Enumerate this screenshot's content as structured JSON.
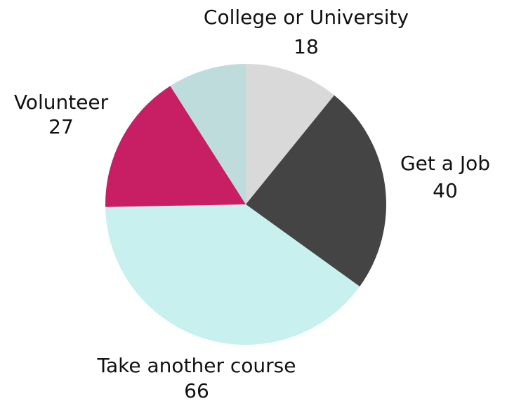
{
  "chart_data": {
    "type": "pie",
    "start_angle_deg": 90,
    "direction": "clockwise",
    "slices": [
      {
        "label": "College or University",
        "value": 18,
        "value_text": "18",
        "color": "#d9d9d9"
      },
      {
        "label": "Get a Job",
        "value": 40,
        "value_text": "40",
        "color": "#444444"
      },
      {
        "label": "Take another course",
        "value": 66,
        "value_text": "66",
        "color": "#c8f0ee"
      },
      {
        "label": "Volunteer",
        "value": 27,
        "value_text": "27",
        "color": "#c81e63"
      },
      {
        "label": "",
        "value": 15,
        "value_text": "",
        "color": "#bfdcdc"
      }
    ],
    "legend": "none"
  }
}
